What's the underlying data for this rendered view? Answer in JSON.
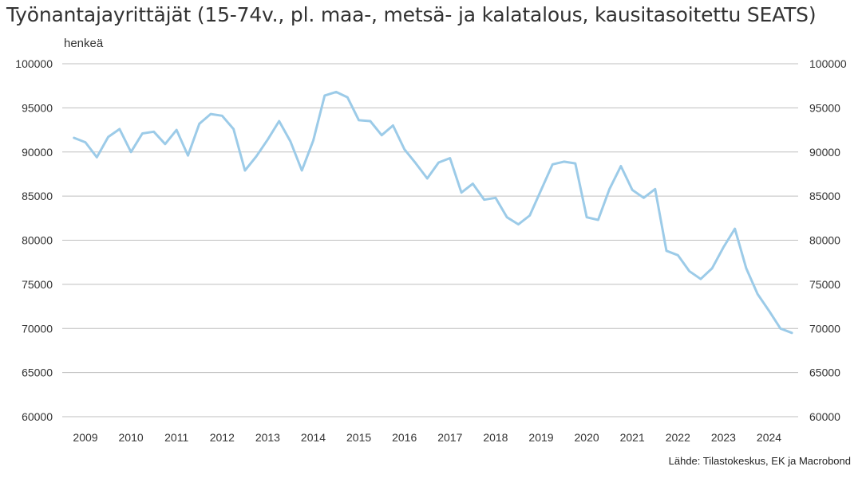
{
  "chart_data": {
    "type": "line",
    "title": "Työnantajayrittäjät (15-74v., pl. maa-, metsä- ja kalatalous, kausitasoitettu SEATS)",
    "unit_label": "henkeä",
    "source": "Lähde: Tilastokeskus, EK ja Macrobond",
    "ylim": [
      60000,
      100000
    ],
    "y_ticks": [
      "100000",
      "95000",
      "90000",
      "85000",
      "80000",
      "75000",
      "70000",
      "65000",
      "60000"
    ],
    "x_tick_labels": [
      "2009",
      "2010",
      "2011",
      "2012",
      "2013",
      "2014",
      "2015",
      "2016",
      "2017",
      "2018",
      "2019",
      "2020",
      "2021",
      "2022",
      "2023",
      "2024"
    ],
    "x_start_year": 2008.75,
    "grid": true,
    "line_color": "#9ccbe8",
    "series": [
      {
        "values": [
          91600,
          91100,
          89400,
          91700,
          92600,
          90000,
          92100,
          92300,
          90900,
          92500,
          89600,
          93200,
          94300,
          94100,
          92600,
          87900,
          89500,
          91400,
          93500,
          91200,
          87900,
          91300,
          96400,
          96800,
          96200,
          93600,
          93500,
          91900,
          93000,
          90300,
          88700,
          87000,
          88800,
          89300,
          85400,
          86400,
          84600,
          84800,
          82600,
          81800,
          82800,
          85700,
          88600,
          88900,
          88700,
          82600,
          82300,
          85800,
          88400,
          85700,
          84800,
          85800,
          78800,
          78300,
          76500,
          75600,
          76800,
          79200,
          81300,
          76800,
          73900,
          72000,
          70000,
          69500
        ]
      }
    ]
  }
}
